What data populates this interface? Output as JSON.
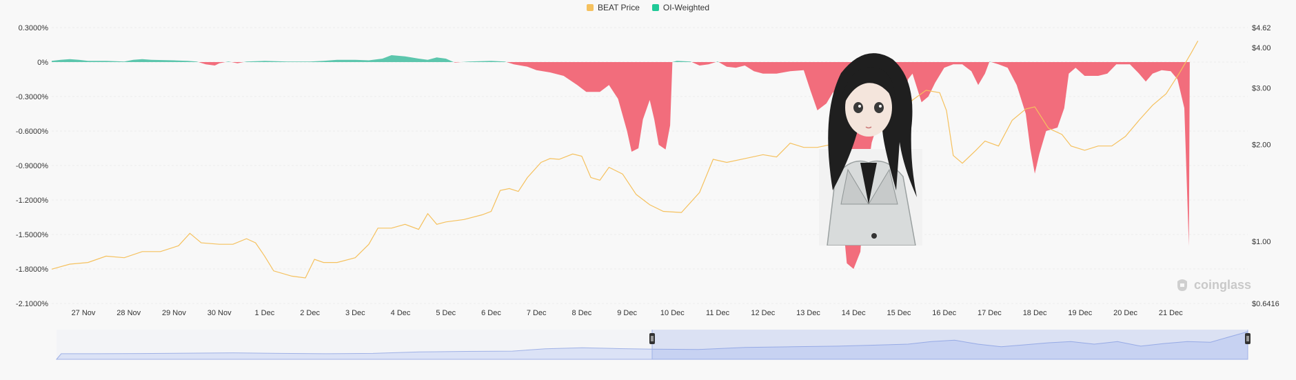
{
  "legend": [
    {
      "name": "BEAT Price",
      "color": "#f5c15e"
    },
    {
      "name": "OI-Weighted",
      "color": "#20c997"
    }
  ],
  "watermark": {
    "text": "coinglass"
  },
  "chart_data": {
    "type": "area",
    "x_labels": [
      "27 Nov",
      "28 Nov",
      "29 Nov",
      "30 Nov",
      "1 Dec",
      "2 Dec",
      "3 Dec",
      "4 Dec",
      "5 Dec",
      "6 Dec",
      "7 Dec",
      "8 Dec",
      "9 Dec",
      "10 Dec",
      "11 Dec",
      "12 Dec",
      "13 Dec",
      "14 Dec",
      "15 Dec",
      "16 Dec",
      "17 Dec",
      "18 Dec",
      "19 Dec",
      "20 Dec",
      "21 Dec"
    ],
    "x_range": [
      26.3,
      52.7
    ],
    "left_axis": {
      "ticks": [
        "0.3000%",
        "0%",
        "-0.3000%",
        "-0.6000%",
        "-0.9000%",
        "-1.2000%",
        "-1.5000%",
        "-1.8000%",
        "-2.1000%"
      ],
      "ylim": [
        -2.1,
        0.3
      ]
    },
    "right_axis": {
      "ticks": [
        "$4.62",
        "$4.00",
        "$3.00",
        "$2.00",
        "$1.00",
        "$0.6416"
      ],
      "ylim": [
        0.6416,
        4.62
      ],
      "scale": "log"
    },
    "series": [
      {
        "name": "OI-Weighted",
        "kind": "area",
        "positive_color": "#5cc6ad",
        "negative_color": "#f26d7c",
        "unit": "%",
        "points": [
          [
            26.3,
            0.01
          ],
          [
            26.5,
            0.02
          ],
          [
            26.7,
            0.025
          ],
          [
            26.9,
            0.02
          ],
          [
            27.1,
            0.01
          ],
          [
            27.5,
            0.01
          ],
          [
            27.9,
            0.005
          ],
          [
            28.1,
            0.02
          ],
          [
            28.3,
            0.025
          ],
          [
            28.5,
            0.02
          ],
          [
            29,
            0.015
          ],
          [
            29.3,
            0.01
          ],
          [
            29.5,
            0.005
          ],
          [
            29.7,
            -0.02
          ],
          [
            29.9,
            -0.03
          ],
          [
            30,
            -0.01
          ],
          [
            30.2,
            0.005
          ],
          [
            30.4,
            -0.01
          ],
          [
            30.6,
            0.005
          ],
          [
            31,
            0.01
          ],
          [
            31.5,
            0.005
          ],
          [
            32,
            0.005
          ],
          [
            32.3,
            0.01
          ],
          [
            32.6,
            0.02
          ],
          [
            33,
            0.02
          ],
          [
            33.3,
            0.015
          ],
          [
            33.6,
            0.03
          ],
          [
            33.8,
            0.06
          ],
          [
            34.1,
            0.05
          ],
          [
            34.4,
            0.03
          ],
          [
            34.6,
            0.02
          ],
          [
            34.8,
            0.04
          ],
          [
            35,
            0.03
          ],
          [
            35.2,
            -0.005
          ],
          [
            35.5,
            0.005
          ],
          [
            36,
            0.01
          ],
          [
            36.3,
            0.005
          ],
          [
            36.5,
            -0.02
          ],
          [
            36.8,
            -0.04
          ],
          [
            37,
            -0.07
          ],
          [
            37.3,
            -0.09
          ],
          [
            37.6,
            -0.12
          ],
          [
            37.9,
            -0.2
          ],
          [
            38.1,
            -0.26
          ],
          [
            38.4,
            -0.26
          ],
          [
            38.6,
            -0.2
          ],
          [
            38.8,
            -0.32
          ],
          [
            39,
            -0.6
          ],
          [
            39.1,
            -0.78
          ],
          [
            39.25,
            -0.75
          ],
          [
            39.35,
            -0.5
          ],
          [
            39.5,
            -0.33
          ],
          [
            39.6,
            -0.5
          ],
          [
            39.7,
            -0.72
          ],
          [
            39.85,
            -0.76
          ],
          [
            39.95,
            -0.55
          ],
          [
            40,
            0.0
          ],
          [
            40.1,
            0.01
          ],
          [
            40.4,
            0.005
          ],
          [
            40.6,
            -0.03
          ],
          [
            40.8,
            -0.02
          ],
          [
            41,
            0.005
          ],
          [
            41.2,
            -0.04
          ],
          [
            41.4,
            -0.05
          ],
          [
            41.6,
            -0.03
          ],
          [
            41.8,
            -0.08
          ],
          [
            42,
            -0.1
          ],
          [
            42.3,
            -0.1
          ],
          [
            42.6,
            -0.08
          ],
          [
            42.9,
            -0.07
          ],
          [
            43.05,
            -0.25
          ],
          [
            43.2,
            -0.42
          ],
          [
            43.4,
            -0.36
          ],
          [
            43.55,
            -0.26
          ],
          [
            43.62,
            -0.35
          ],
          [
            43.72,
            -1.2
          ],
          [
            43.85,
            -1.75
          ],
          [
            44,
            -1.8
          ],
          [
            44.15,
            -1.65
          ],
          [
            44.25,
            -1.1
          ],
          [
            44.4,
            -0.7
          ],
          [
            44.6,
            -0.45
          ],
          [
            44.85,
            -0.3
          ],
          [
            45,
            -0.15
          ],
          [
            45.1,
            -0.45
          ],
          [
            45.2,
            -0.15
          ],
          [
            45.3,
            -0.1
          ],
          [
            45.5,
            -0.35
          ],
          [
            45.65,
            -0.3
          ],
          [
            45.8,
            -0.18
          ],
          [
            46,
            -0.05
          ],
          [
            46.2,
            -0.02
          ],
          [
            46.4,
            -0.02
          ],
          [
            46.6,
            -0.08
          ],
          [
            46.75,
            -0.2
          ],
          [
            46.9,
            -0.1
          ],
          [
            47,
            0.005
          ],
          [
            47.2,
            -0.02
          ],
          [
            47.4,
            -0.05
          ],
          [
            47.6,
            -0.2
          ],
          [
            47.8,
            -0.45
          ],
          [
            47.9,
            -0.75
          ],
          [
            48,
            -0.97
          ],
          [
            48.1,
            -0.8
          ],
          [
            48.25,
            -0.6
          ],
          [
            48.5,
            -0.57
          ],
          [
            48.65,
            -0.4
          ],
          [
            48.75,
            -0.1
          ],
          [
            48.9,
            -0.05
          ],
          [
            49.1,
            -0.12
          ],
          [
            49.4,
            -0.12
          ],
          [
            49.6,
            -0.1
          ],
          [
            49.8,
            -0.02
          ],
          [
            50.1,
            -0.02
          ],
          [
            50.3,
            -0.1
          ],
          [
            50.45,
            -0.17
          ],
          [
            50.6,
            -0.1
          ],
          [
            50.8,
            -0.07
          ],
          [
            51,
            -0.08
          ],
          [
            51.15,
            -0.15
          ],
          [
            51.3,
            -0.4
          ],
          [
            51.4,
            -1.6
          ],
          [
            51.42,
            0
          ]
        ]
      },
      {
        "name": "BEAT Price",
        "kind": "line",
        "color": "#f5c15e",
        "unit": "$",
        "points": [
          [
            26.3,
            0.82
          ],
          [
            26.7,
            0.85
          ],
          [
            27.1,
            0.86
          ],
          [
            27.5,
            0.9
          ],
          [
            27.9,
            0.89
          ],
          [
            28.3,
            0.93
          ],
          [
            28.7,
            0.93
          ],
          [
            29.1,
            0.97
          ],
          [
            29.35,
            1.06
          ],
          [
            29.6,
            0.99
          ],
          [
            30,
            0.98
          ],
          [
            30.3,
            0.98
          ],
          [
            30.6,
            1.02
          ],
          [
            30.8,
            0.99
          ],
          [
            31,
            0.9
          ],
          [
            31.2,
            0.81
          ],
          [
            31.6,
            0.78
          ],
          [
            31.9,
            0.77
          ],
          [
            32.1,
            0.88
          ],
          [
            32.3,
            0.86
          ],
          [
            32.6,
            0.86
          ],
          [
            33,
            0.89
          ],
          [
            33.3,
            0.98
          ],
          [
            33.5,
            1.1
          ],
          [
            33.8,
            1.1
          ],
          [
            34.1,
            1.13
          ],
          [
            34.4,
            1.09
          ],
          [
            34.6,
            1.22
          ],
          [
            34.8,
            1.13
          ],
          [
            35,
            1.15
          ],
          [
            35.4,
            1.17
          ],
          [
            35.8,
            1.21
          ],
          [
            36,
            1.24
          ],
          [
            36.2,
            1.44
          ],
          [
            36.4,
            1.46
          ],
          [
            36.6,
            1.43
          ],
          [
            36.8,
            1.58
          ],
          [
            37.1,
            1.76
          ],
          [
            37.3,
            1.81
          ],
          [
            37.5,
            1.8
          ],
          [
            37.8,
            1.87
          ],
          [
            38,
            1.84
          ],
          [
            38.2,
            1.58
          ],
          [
            38.4,
            1.55
          ],
          [
            38.6,
            1.7
          ],
          [
            38.9,
            1.62
          ],
          [
            39.2,
            1.4
          ],
          [
            39.5,
            1.3
          ],
          [
            39.8,
            1.24
          ],
          [
            40.2,
            1.23
          ],
          [
            40.6,
            1.42
          ],
          [
            40.9,
            1.8
          ],
          [
            41.2,
            1.76
          ],
          [
            41.6,
            1.81
          ],
          [
            42,
            1.86
          ],
          [
            42.3,
            1.83
          ],
          [
            42.6,
            2.02
          ],
          [
            42.9,
            1.96
          ],
          [
            43.2,
            1.96
          ],
          [
            43.5,
            2.0
          ],
          [
            43.8,
            2.18
          ],
          [
            44.1,
            2.2
          ],
          [
            44.4,
            2.16
          ],
          [
            44.7,
            2.22
          ],
          [
            45,
            2.45
          ],
          [
            45.3,
            2.75
          ],
          [
            45.6,
            2.95
          ],
          [
            45.9,
            2.9
          ],
          [
            46.05,
            2.55
          ],
          [
            46.2,
            1.85
          ],
          [
            46.4,
            1.75
          ],
          [
            46.7,
            1.92
          ],
          [
            46.9,
            2.05
          ],
          [
            47.2,
            1.98
          ],
          [
            47.5,
            2.38
          ],
          [
            47.8,
            2.58
          ],
          [
            48,
            2.62
          ],
          [
            48.3,
            2.25
          ],
          [
            48.6,
            2.15
          ],
          [
            48.8,
            1.98
          ],
          [
            49.1,
            1.92
          ],
          [
            49.4,
            1.98
          ],
          [
            49.7,
            1.98
          ],
          [
            50,
            2.12
          ],
          [
            50.3,
            2.38
          ],
          [
            50.6,
            2.65
          ],
          [
            50.9,
            2.88
          ],
          [
            51.2,
            3.35
          ],
          [
            51.45,
            3.85
          ],
          [
            51.6,
            4.2
          ]
        ]
      }
    ],
    "navigator": {
      "points": [
        [
          26.2,
          0.0
        ],
        [
          26.3,
          0.85
        ],
        [
          27,
          0.85
        ],
        [
          28,
          0.88
        ],
        [
          29,
          0.93
        ],
        [
          30,
          0.98
        ],
        [
          31,
          0.9
        ],
        [
          32,
          0.85
        ],
        [
          33,
          0.9
        ],
        [
          34,
          1.12
        ],
        [
          35,
          1.2
        ],
        [
          36,
          1.25
        ],
        [
          36.7,
          1.6
        ],
        [
          37.5,
          1.75
        ],
        [
          38.3,
          1.62
        ],
        [
          39,
          1.55
        ],
        [
          40,
          1.5
        ],
        [
          41,
          1.8
        ],
        [
          42,
          1.9
        ],
        [
          43,
          2.0
        ],
        [
          44,
          2.2
        ],
        [
          44.5,
          2.3
        ],
        [
          45,
          2.7
        ],
        [
          45.5,
          2.9
        ],
        [
          46,
          2.3
        ],
        [
          46.5,
          1.9
        ],
        [
          47,
          2.2
        ],
        [
          47.5,
          2.5
        ],
        [
          48,
          2.7
        ],
        [
          48.5,
          2.3
        ],
        [
          49,
          2.7
        ],
        [
          49.5,
          2.0
        ],
        [
          50,
          2.4
        ],
        [
          50.5,
          2.7
        ],
        [
          51,
          2.6
        ],
        [
          51.5,
          3.6
        ],
        [
          51.8,
          4.2
        ]
      ],
      "selection": [
        39.0,
        51.8
      ]
    }
  }
}
